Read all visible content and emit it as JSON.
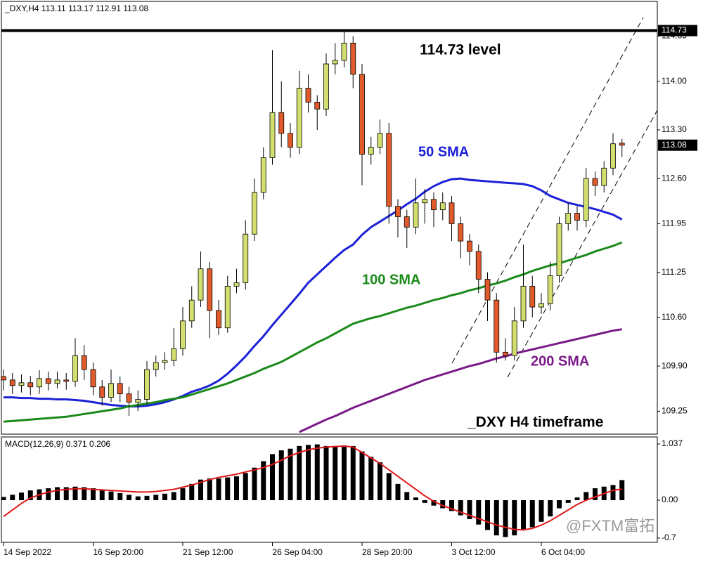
{
  "chart_data": [
    {
      "type": "candlestick",
      "title": "_DXY,H4  113.11 113.17 112.91 113.08",
      "categories": [
        "14 Sep 2022",
        null,
        null,
        null,
        null,
        null,
        null,
        null,
        null,
        null,
        "16 Sep 20:00",
        null,
        null,
        null,
        null,
        null,
        null,
        null,
        null,
        null,
        "21 Sep 12:00",
        null,
        null,
        null,
        null,
        null,
        null,
        null,
        null,
        null,
        "26 Sep 04:00",
        null,
        null,
        null,
        null,
        null,
        null,
        null,
        null,
        null,
        "28 Sep 20:00",
        null,
        null,
        null,
        null,
        null,
        null,
        null,
        null,
        null,
        "3 Oct 12:00",
        null,
        null,
        null,
        null,
        null,
        null,
        null,
        null,
        null,
        "6 Oct 04:00",
        null,
        null,
        null,
        null,
        null,
        null,
        null,
        null,
        null
      ],
      "candles": [
        [
          109.75,
          109.85,
          109.55,
          109.7
        ],
        [
          109.7,
          109.8,
          109.5,
          109.62
        ],
        [
          109.62,
          109.78,
          109.52,
          109.66
        ],
        [
          109.66,
          109.76,
          109.48,
          109.6
        ],
        [
          109.6,
          109.84,
          109.5,
          109.72
        ],
        [
          109.72,
          109.82,
          109.55,
          109.65
        ],
        [
          109.65,
          109.82,
          109.58,
          109.7
        ],
        [
          109.7,
          109.8,
          109.56,
          109.68
        ],
        [
          109.68,
          110.3,
          109.6,
          110.05
        ],
        [
          110.05,
          110.2,
          109.7,
          109.85
        ],
        [
          109.85,
          109.95,
          109.48,
          109.6
        ],
        [
          109.6,
          109.7,
          109.33,
          109.45
        ],
        [
          109.45,
          109.85,
          109.38,
          109.65
        ],
        [
          109.65,
          109.75,
          109.38,
          109.5
        ],
        [
          109.5,
          109.6,
          109.18,
          109.38
        ],
        [
          109.38,
          109.55,
          109.25,
          109.42
        ],
        [
          109.42,
          109.97,
          109.35,
          109.85
        ],
        [
          109.85,
          110.05,
          109.75,
          109.95
        ],
        [
          109.95,
          110.1,
          109.85,
          109.98
        ],
        [
          109.98,
          110.45,
          109.9,
          110.15
        ],
        [
          110.15,
          110.75,
          110.05,
          110.55
        ],
        [
          110.55,
          111.05,
          110.45,
          110.85
        ],
        [
          110.85,
          111.55,
          110.75,
          111.3
        ],
        [
          111.3,
          111.4,
          110.3,
          110.7
        ],
        [
          110.7,
          110.85,
          110.35,
          110.45
        ],
        [
          110.45,
          111.2,
          110.38,
          111.05
        ],
        [
          111.05,
          111.3,
          110.95,
          111.1
        ],
        [
          111.1,
          112.0,
          111.0,
          111.8
        ],
        [
          111.8,
          112.6,
          111.7,
          112.4
        ],
        [
          112.4,
          113.05,
          112.3,
          112.9
        ],
        [
          112.9,
          114.45,
          112.8,
          113.55
        ],
        [
          113.55,
          114.0,
          113.05,
          113.25
        ],
        [
          113.25,
          113.4,
          112.9,
          113.05
        ],
        [
          113.05,
          114.15,
          112.95,
          113.9
        ],
        [
          113.9,
          114.1,
          113.55,
          113.7
        ],
        [
          113.7,
          113.8,
          113.3,
          113.6
        ],
        [
          113.6,
          114.4,
          113.5,
          114.25
        ],
        [
          114.25,
          114.55,
          114.1,
          114.3
        ],
        [
          114.3,
          114.73,
          114.2,
          114.55
        ],
        [
          114.55,
          114.65,
          113.9,
          114.1
        ],
        [
          114.1,
          114.25,
          112.5,
          112.95
        ],
        [
          112.95,
          113.2,
          112.8,
          113.05
        ],
        [
          113.05,
          113.45,
          112.95,
          113.25
        ],
        [
          113.25,
          113.4,
          111.95,
          112.2
        ],
        [
          112.2,
          112.3,
          111.75,
          112.05
        ],
        [
          112.05,
          112.15,
          111.6,
          111.9
        ],
        [
          111.9,
          112.6,
          111.8,
          112.25
        ],
        [
          112.25,
          112.45,
          111.95,
          112.3
        ],
        [
          112.3,
          112.4,
          111.9,
          112.15
        ],
        [
          112.15,
          112.4,
          112.0,
          112.25
        ],
        [
          112.25,
          112.35,
          111.7,
          111.95
        ],
        [
          111.95,
          112.05,
          111.45,
          111.7
        ],
        [
          111.7,
          111.8,
          111.35,
          111.55
        ],
        [
          111.55,
          111.65,
          110.95,
          111.15
        ],
        [
          111.15,
          111.25,
          110.55,
          110.85
        ],
        [
          110.85,
          110.95,
          109.95,
          110.1
        ],
        [
          110.1,
          110.3,
          109.98,
          110.05
        ],
        [
          110.05,
          110.75,
          109.98,
          110.55
        ],
        [
          110.55,
          111.65,
          110.45,
          111.05
        ],
        [
          111.05,
          111.2,
          110.6,
          110.75
        ],
        [
          110.75,
          110.95,
          110.65,
          110.8
        ],
        [
          110.8,
          111.4,
          110.7,
          111.2
        ],
        [
          111.2,
          112.05,
          111.1,
          111.95
        ],
        [
          111.95,
          112.25,
          111.85,
          112.1
        ],
        [
          112.1,
          112.2,
          111.85,
          112.0
        ],
        [
          112.0,
          112.75,
          111.9,
          112.6
        ],
        [
          112.6,
          112.7,
          112.35,
          112.5
        ],
        [
          112.5,
          112.85,
          112.4,
          112.75
        ],
        [
          112.75,
          113.25,
          112.65,
          113.1
        ],
        [
          113.11,
          113.17,
          112.91,
          113.08
        ]
      ],
      "up_color": "#d2de6e",
      "down_color": "#e05a2c",
      "series": [
        {
          "name": "50 SMA",
          "color": "#1c22d8",
          "values": [
            109.45,
            109.45,
            109.44,
            109.44,
            109.43,
            109.43,
            109.42,
            109.42,
            109.41,
            109.4,
            109.38,
            109.36,
            109.34,
            109.33,
            109.32,
            109.32,
            109.33,
            109.35,
            109.38,
            109.42,
            109.47,
            109.53,
            109.57,
            109.62,
            109.69,
            109.79,
            109.91,
            110.04,
            110.19,
            110.33,
            110.49,
            110.64,
            110.79,
            110.94,
            111.1,
            111.22,
            111.34,
            111.46,
            111.57,
            111.65,
            111.79,
            111.9,
            111.98,
            112.06,
            112.14,
            112.23,
            112.31,
            112.41,
            112.49,
            112.55,
            112.59,
            112.6,
            112.58,
            112.57,
            112.56,
            112.55,
            112.54,
            112.53,
            112.52,
            112.49,
            112.43,
            112.35,
            112.3,
            112.25,
            112.22,
            112.19,
            112.16,
            112.12,
            112.08,
            112.01
          ]
        },
        {
          "name": "100 SMA",
          "color": "#1a8a1a",
          "values": [
            109.1,
            109.11,
            109.12,
            109.13,
            109.14,
            109.15,
            109.16,
            109.17,
            109.19,
            109.21,
            109.23,
            109.25,
            109.27,
            109.29,
            109.32,
            109.34,
            109.36,
            109.38,
            109.41,
            109.43,
            109.45,
            109.49,
            109.53,
            109.57,
            109.61,
            109.65,
            109.7,
            109.75,
            109.8,
            109.86,
            109.91,
            109.96,
            110.03,
            110.1,
            110.17,
            110.24,
            110.3,
            110.37,
            110.44,
            110.51,
            110.55,
            110.59,
            110.62,
            110.66,
            110.7,
            110.74,
            110.77,
            110.81,
            110.85,
            110.88,
            110.92,
            110.95,
            110.99,
            111.02,
            111.06,
            111.09,
            111.13,
            111.18,
            111.22,
            111.27,
            111.31,
            111.35,
            111.38,
            111.42,
            111.46,
            111.5,
            111.55,
            111.59,
            111.63,
            111.68
          ]
        },
        {
          "name": "200 SMA",
          "color": "#7a1a88",
          "values": [
            null,
            null,
            null,
            null,
            null,
            null,
            null,
            null,
            null,
            null,
            null,
            null,
            null,
            null,
            null,
            null,
            null,
            null,
            null,
            null,
            null,
            null,
            null,
            null,
            null,
            null,
            null,
            null,
            null,
            null,
            null,
            null,
            null,
            108.95,
            109.01,
            109.07,
            109.13,
            109.18,
            109.24,
            109.3,
            109.35,
            109.4,
            109.45,
            109.5,
            109.55,
            109.6,
            109.65,
            109.7,
            109.74,
            109.78,
            109.82,
            109.86,
            109.9,
            109.93,
            109.97,
            110.01,
            110.04,
            110.08,
            110.11,
            110.14,
            110.17,
            110.2,
            110.23,
            110.26,
            110.29,
            110.32,
            110.35,
            110.38,
            110.41,
            110.43
          ]
        }
      ],
      "ylim": [
        108.92,
        115.15
      ],
      "yticks": [
        {
          "value": 109.25,
          "label": "109.25"
        },
        {
          "value": 109.9,
          "label": "109.90"
        },
        {
          "value": 110.6,
          "label": "110.60"
        },
        {
          "value": 111.25,
          "label": "111.25"
        },
        {
          "value": 111.95,
          "label": "111.95"
        },
        {
          "value": 112.6,
          "label": "112.60"
        },
        {
          "value": 113.3,
          "label": "113.30"
        },
        {
          "value": 114,
          "label": "114.00"
        },
        {
          "value": 114.65,
          "label": "114.65"
        }
      ],
      "level": {
        "value": 114.73,
        "label": "114.73"
      },
      "last_price": {
        "value": 113.08,
        "label": "113.08"
      },
      "annotations": [
        "114.73 level",
        "_DXY H4 timeframe"
      ],
      "watermark": "@FXTM富拓"
    },
    {
      "type": "macd",
      "title": "MACD(12,26,9) 0.371 0.206",
      "histogram": [
        0.06,
        0.1,
        0.14,
        0.18,
        0.2,
        0.22,
        0.24,
        0.24,
        0.25,
        0.24,
        0.22,
        0.19,
        0.16,
        0.13,
        0.1,
        0.07,
        0.08,
        0.1,
        0.12,
        0.15,
        0.22,
        0.3,
        0.38,
        0.4,
        0.4,
        0.42,
        0.44,
        0.5,
        0.6,
        0.72,
        0.85,
        0.92,
        0.95,
        1.0,
        1.02,
        1.03,
        1.0,
        1.0,
        1.01,
        1.0,
        0.9,
        0.8,
        0.7,
        0.5,
        0.3,
        0.15,
        0.05,
        -0.05,
        -0.1,
        -0.15,
        -0.2,
        -0.28,
        -0.35,
        -0.45,
        -0.55,
        -0.65,
        -0.68,
        -0.65,
        -0.55,
        -0.5,
        -0.4,
        -0.3,
        -0.15,
        -0.05,
        0.05,
        0.15,
        0.22,
        0.25,
        0.28,
        0.371
      ],
      "histogram_color": "#000000",
      "signal": [
        -0.3,
        -0.18,
        -0.06,
        0.04,
        0.1,
        0.15,
        0.18,
        0.2,
        0.21,
        0.21,
        0.2,
        0.19,
        0.18,
        0.17,
        0.16,
        0.15,
        0.15,
        0.16,
        0.18,
        0.2,
        0.24,
        0.28,
        0.33,
        0.38,
        0.42,
        0.45,
        0.48,
        0.52,
        0.56,
        0.6,
        0.66,
        0.74,
        0.82,
        0.88,
        0.93,
        0.96,
        0.98,
        0.99,
        1.0,
        0.98,
        0.88,
        0.78,
        0.68,
        0.56,
        0.44,
        0.32,
        0.2,
        0.08,
        -0.02,
        -0.1,
        -0.16,
        -0.22,
        -0.28,
        -0.34,
        -0.4,
        -0.46,
        -0.5,
        -0.54,
        -0.55,
        -0.52,
        -0.46,
        -0.38,
        -0.28,
        -0.18,
        -0.08,
        0.0,
        0.06,
        0.12,
        0.18,
        0.206
      ],
      "signal_color": "#e01818",
      "ylim": [
        -0.778,
        1.167
      ],
      "yticks": [
        1.037,
        {
          "value": 0,
          "label": "0.00"
        },
        -0.7
      ]
    }
  ]
}
